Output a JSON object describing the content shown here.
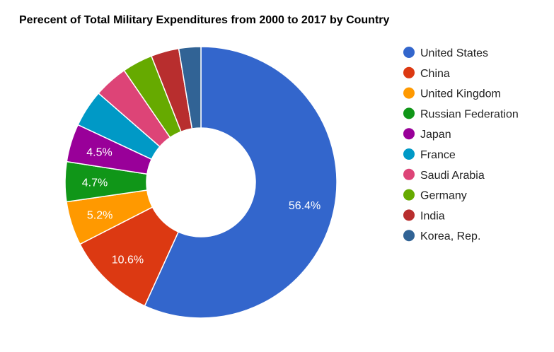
{
  "chart_data": {
    "type": "pie",
    "donut": true,
    "title": "Perecent of Total Military Expenditures from 2000 to 2017 by Country",
    "legend_position": "right",
    "slices": [
      {
        "name": "United States",
        "value": 56.4,
        "label": "56.4%",
        "color": "#3366cc"
      },
      {
        "name": "China",
        "value": 10.6,
        "label": "10.6%",
        "color": "#dc3912"
      },
      {
        "name": "United Kingdom",
        "value": 5.2,
        "label": "5.2%",
        "color": "#ff9900"
      },
      {
        "name": "Russian Federation",
        "value": 4.7,
        "label": "4.7%",
        "color": "#109618"
      },
      {
        "name": "Japan",
        "value": 4.5,
        "label": "4.5%",
        "color": "#990099"
      },
      {
        "name": "France",
        "value": 4.4,
        "label": "",
        "color": "#0099c6"
      },
      {
        "name": "Saudi Arabia",
        "value": 4.0,
        "label": "",
        "color": "#dd4477"
      },
      {
        "name": "Germany",
        "value": 3.6,
        "label": "",
        "color": "#66aa00"
      },
      {
        "name": "India",
        "value": 3.3,
        "label": "",
        "color": "#b82e2e"
      },
      {
        "name": "Korea, Rep.",
        "value": 2.6,
        "label": "",
        "color": "#316395"
      }
    ]
  }
}
